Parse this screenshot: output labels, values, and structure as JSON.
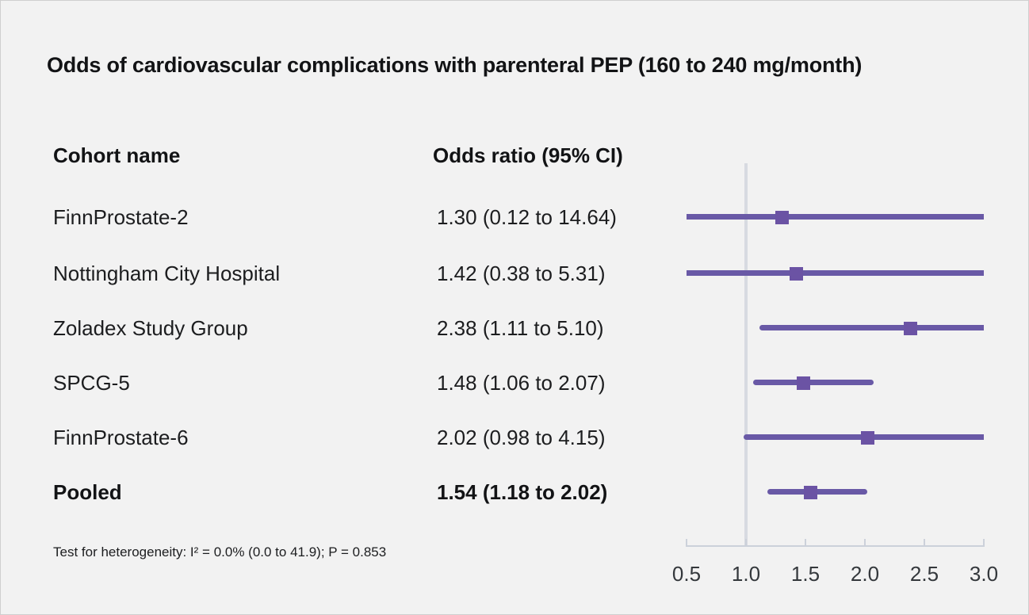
{
  "title": "Odds of cardiovascular complications with parenteral PEP (160 to 240 mg/month)",
  "table": {
    "col1_header": "Cohort name",
    "col2_header": "Odds ratio (95% CI)",
    "rows": [
      {
        "name": "FinnProstate-2",
        "or_ci": "1.30 (0.12 to 14.64)"
      },
      {
        "name": "Nottingham City Hospital",
        "or_ci": "1.42 (0.38 to 5.31)"
      },
      {
        "name": "Zoladex Study Group",
        "or_ci": "2.38 (1.11 to 5.10)"
      },
      {
        "name": "SPCG-5",
        "or_ci": "1.48 (1.06 to 2.07)"
      },
      {
        "name": "FinnProstate-6",
        "or_ci": "2.02 (0.98 to 4.15)"
      },
      {
        "name": "Pooled",
        "or_ci": "1.54 (1.18 to 2.02)"
      }
    ]
  },
  "footnote": "Test for heterogeneity: I² = 0.0% (0.0 to 41.9); P = 0.853",
  "chart_data": {
    "type": "scatter",
    "subtype": "forest-plot",
    "title": "Odds of cardiovascular complications with parenteral PEP (160 to 240 mg/month)",
    "xlabel": "",
    "ylabel": "",
    "xlim": [
      0.5,
      3.0
    ],
    "x_ticks": [
      0.5,
      1.0,
      1.5,
      2.0,
      2.5,
      3.0
    ],
    "x_tick_labels": [
      "0.5",
      "1.0",
      "1.5",
      "2.0",
      "2.5",
      "3.0"
    ],
    "reference_line_x": 1.0,
    "grid": false,
    "legend": false,
    "points": [
      {
        "label": "FinnProstate-2",
        "or": 1.3,
        "ci_low": 0.12,
        "ci_high": 14.64,
        "pooled": false
      },
      {
        "label": "Nottingham City Hospital",
        "or": 1.42,
        "ci_low": 0.38,
        "ci_high": 5.31,
        "pooled": false
      },
      {
        "label": "Zoladex Study Group",
        "or": 2.38,
        "ci_low": 1.11,
        "ci_high": 5.1,
        "pooled": false
      },
      {
        "label": "SPCG-5",
        "or": 1.48,
        "ci_low": 1.06,
        "ci_high": 2.07,
        "pooled": false
      },
      {
        "label": "FinnProstate-6",
        "or": 2.02,
        "ci_low": 0.98,
        "ci_high": 4.15,
        "pooled": false
      },
      {
        "label": "Pooled",
        "or": 1.54,
        "ci_low": 1.18,
        "ci_high": 2.02,
        "pooled": true
      }
    ]
  },
  "colors": {
    "background": "#f2f2f2",
    "ci_line": "#6959a6",
    "marker": "#6b53a4",
    "reference_line": "#d7dae1",
    "axis": "#ccd1da",
    "text": "#1c1d1f"
  }
}
